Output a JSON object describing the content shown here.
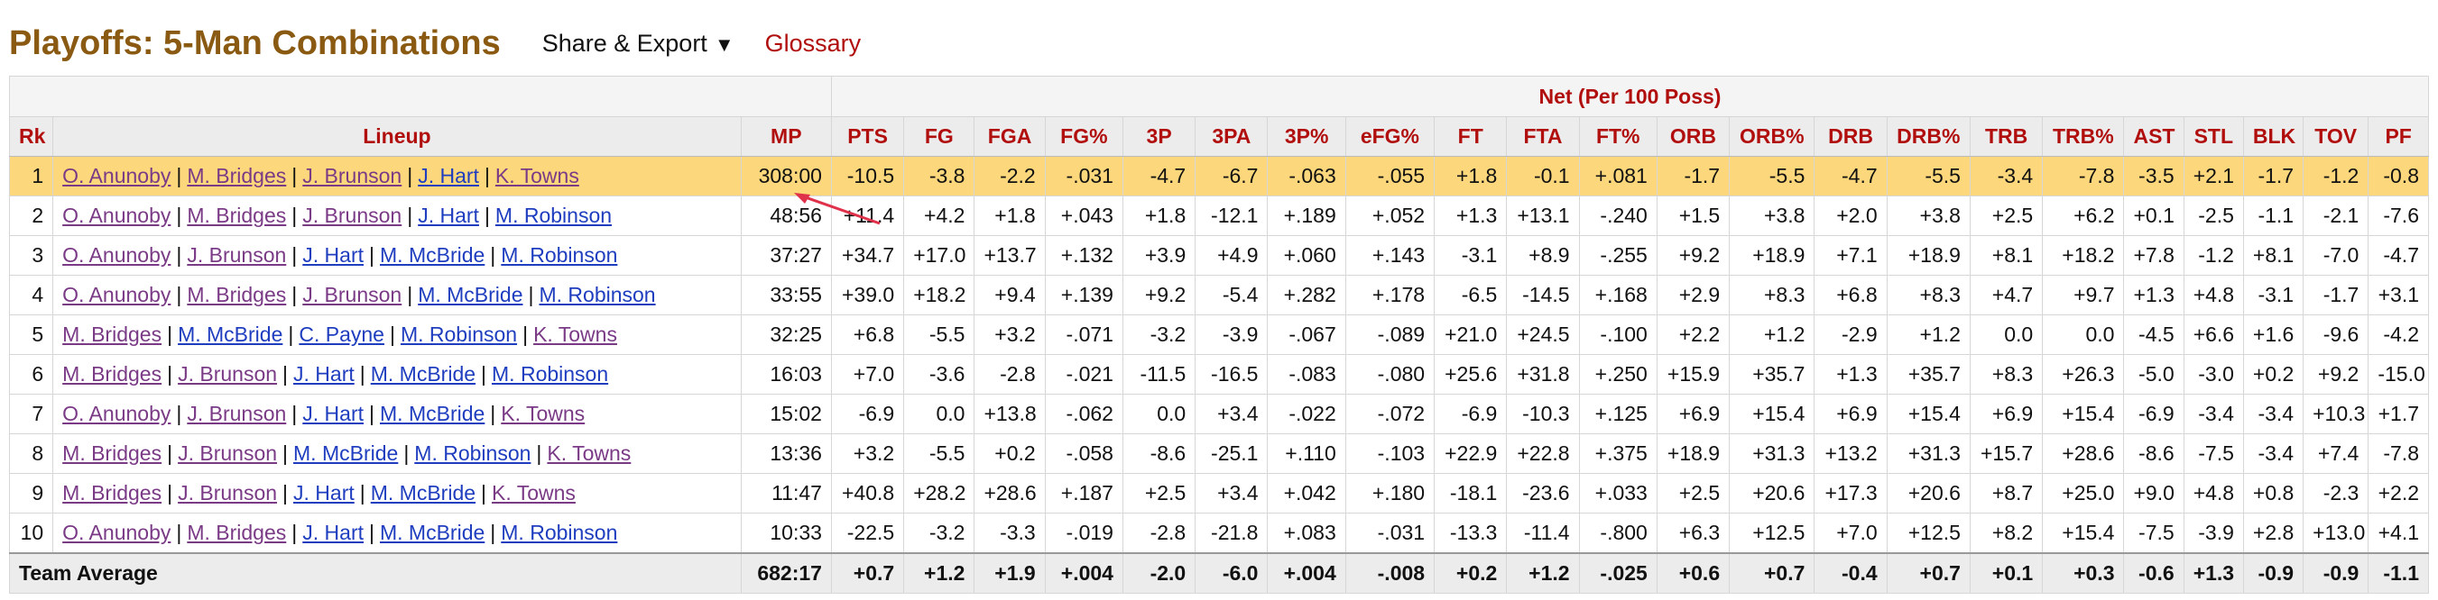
{
  "header": {
    "title": "Playoffs: 5-Man Combinations",
    "share_label": "Share & Export",
    "share_caret": "▼",
    "glossary_label": "Glossary"
  },
  "table": {
    "over_header": "Net (Per 100 Poss)",
    "columns": [
      "Rk",
      "Lineup",
      "MP",
      "PTS",
      "FG",
      "FGA",
      "FG%",
      "3P",
      "3PA",
      "3P%",
      "eFG%",
      "FT",
      "FTA",
      "FT%",
      "ORB",
      "ORB%",
      "DRB",
      "DRB%",
      "TRB",
      "TRB%",
      "AST",
      "STL",
      "BLK",
      "TOV",
      "PF"
    ],
    "rows": [
      {
        "rk": "1",
        "players": [
          {
            "n": "O. Anunoby",
            "c": "v"
          },
          {
            "n": "M. Bridges",
            "c": "v"
          },
          {
            "n": "J. Brunson",
            "c": "v"
          },
          {
            "n": "J. Hart",
            "c": "b"
          },
          {
            "n": "K. Towns",
            "c": "v"
          }
        ],
        "stats": [
          "308:00",
          "-10.5",
          "-3.8",
          "-2.2",
          "-.031",
          "-4.7",
          "-6.7",
          "-.063",
          "-.055",
          "+1.8",
          "-0.1",
          "+.081",
          "-1.7",
          "-5.5",
          "-4.7",
          "-5.5",
          "-3.4",
          "-7.8",
          "-3.5",
          "+2.1",
          "-1.7",
          "-1.2",
          "-0.8"
        ]
      },
      {
        "rk": "2",
        "players": [
          {
            "n": "O. Anunoby",
            "c": "v"
          },
          {
            "n": "M. Bridges",
            "c": "v"
          },
          {
            "n": "J. Brunson",
            "c": "v"
          },
          {
            "n": "J. Hart",
            "c": "b"
          },
          {
            "n": "M. Robinson",
            "c": "b"
          }
        ],
        "stats": [
          "48:56",
          "+11.4",
          "+4.2",
          "+1.8",
          "+.043",
          "+1.8",
          "-12.1",
          "+.189",
          "+.052",
          "+1.3",
          "+13.1",
          "-.240",
          "+1.5",
          "+3.8",
          "+2.0",
          "+3.8",
          "+2.5",
          "+6.2",
          "+0.1",
          "-2.5",
          "-1.1",
          "-2.1",
          "-7.6"
        ]
      },
      {
        "rk": "3",
        "players": [
          {
            "n": "O. Anunoby",
            "c": "v"
          },
          {
            "n": "J. Brunson",
            "c": "v"
          },
          {
            "n": "J. Hart",
            "c": "b"
          },
          {
            "n": "M. McBride",
            "c": "b"
          },
          {
            "n": "M. Robinson",
            "c": "b"
          }
        ],
        "stats": [
          "37:27",
          "+34.7",
          "+17.0",
          "+13.7",
          "+.132",
          "+3.9",
          "+4.9",
          "+.060",
          "+.143",
          "-3.1",
          "+8.9",
          "-.255",
          "+9.2",
          "+18.9",
          "+7.1",
          "+18.9",
          "+8.1",
          "+18.2",
          "+7.8",
          "-1.2",
          "+8.1",
          "-7.0",
          "-4.7"
        ]
      },
      {
        "rk": "4",
        "players": [
          {
            "n": "O. Anunoby",
            "c": "v"
          },
          {
            "n": "M. Bridges",
            "c": "v"
          },
          {
            "n": "J. Brunson",
            "c": "v"
          },
          {
            "n": "M. McBride",
            "c": "b"
          },
          {
            "n": "M. Robinson",
            "c": "b"
          }
        ],
        "stats": [
          "33:55",
          "+39.0",
          "+18.2",
          "+9.4",
          "+.139",
          "+9.2",
          "-5.4",
          "+.282",
          "+.178",
          "-6.5",
          "-14.5",
          "+.168",
          "+2.9",
          "+8.3",
          "+6.8",
          "+8.3",
          "+4.7",
          "+9.7",
          "+1.3",
          "+4.8",
          "-3.1",
          "-1.7",
          "+3.1"
        ]
      },
      {
        "rk": "5",
        "players": [
          {
            "n": "M. Bridges",
            "c": "v"
          },
          {
            "n": "M. McBride",
            "c": "b"
          },
          {
            "n": "C. Payne",
            "c": "b"
          },
          {
            "n": "M. Robinson",
            "c": "b"
          },
          {
            "n": "K. Towns",
            "c": "v"
          }
        ],
        "stats": [
          "32:25",
          "+6.8",
          "-5.5",
          "+3.2",
          "-.071",
          "-3.2",
          "-3.9",
          "-.067",
          "-.089",
          "+21.0",
          "+24.5",
          "-.100",
          "+2.2",
          "+1.2",
          "-2.9",
          "+1.2",
          "0.0",
          "0.0",
          "-4.5",
          "+6.6",
          "+1.6",
          "-9.6",
          "-4.2"
        ]
      },
      {
        "rk": "6",
        "players": [
          {
            "n": "M. Bridges",
            "c": "v"
          },
          {
            "n": "J. Brunson",
            "c": "v"
          },
          {
            "n": "J. Hart",
            "c": "b"
          },
          {
            "n": "M. McBride",
            "c": "b"
          },
          {
            "n": "M. Robinson",
            "c": "b"
          }
        ],
        "stats": [
          "16:03",
          "+7.0",
          "-3.6",
          "-2.8",
          "-.021",
          "-11.5",
          "-16.5",
          "-.083",
          "-.080",
          "+25.6",
          "+31.8",
          "+.250",
          "+15.9",
          "+35.7",
          "+1.3",
          "+35.7",
          "+8.3",
          "+26.3",
          "-5.0",
          "-3.0",
          "+0.2",
          "+9.2",
          "-15.0"
        ]
      },
      {
        "rk": "7",
        "players": [
          {
            "n": "O. Anunoby",
            "c": "v"
          },
          {
            "n": "J. Brunson",
            "c": "v"
          },
          {
            "n": "J. Hart",
            "c": "b"
          },
          {
            "n": "M. McBride",
            "c": "b"
          },
          {
            "n": "K. Towns",
            "c": "v"
          }
        ],
        "stats": [
          "15:02",
          "-6.9",
          "0.0",
          "+13.8",
          "-.062",
          "0.0",
          "+3.4",
          "-.022",
          "-.072",
          "-6.9",
          "-10.3",
          "+.125",
          "+6.9",
          "+15.4",
          "+6.9",
          "+15.4",
          "+6.9",
          "+15.4",
          "-6.9",
          "-3.4",
          "-3.4",
          "+10.3",
          "+1.7"
        ]
      },
      {
        "rk": "8",
        "players": [
          {
            "n": "M. Bridges",
            "c": "v"
          },
          {
            "n": "J. Brunson",
            "c": "v"
          },
          {
            "n": "M. McBride",
            "c": "b"
          },
          {
            "n": "M. Robinson",
            "c": "b"
          },
          {
            "n": "K. Towns",
            "c": "v"
          }
        ],
        "stats": [
          "13:36",
          "+3.2",
          "-5.5",
          "+0.2",
          "-.058",
          "-8.6",
          "-25.1",
          "+.110",
          "-.103",
          "+22.9",
          "+22.8",
          "+.375",
          "+18.9",
          "+31.3",
          "+13.2",
          "+31.3",
          "+15.7",
          "+28.6",
          "-8.6",
          "-7.5",
          "-3.4",
          "+7.4",
          "-7.8"
        ]
      },
      {
        "rk": "9",
        "players": [
          {
            "n": "M. Bridges",
            "c": "v"
          },
          {
            "n": "J. Brunson",
            "c": "v"
          },
          {
            "n": "J. Hart",
            "c": "b"
          },
          {
            "n": "M. McBride",
            "c": "b"
          },
          {
            "n": "K. Towns",
            "c": "v"
          }
        ],
        "stats": [
          "11:47",
          "+40.8",
          "+28.2",
          "+28.6",
          "+.187",
          "+2.5",
          "+3.4",
          "+.042",
          "+.180",
          "-18.1",
          "-23.6",
          "+.033",
          "+2.5",
          "+20.6",
          "+17.3",
          "+20.6",
          "+8.7",
          "+25.0",
          "+9.0",
          "+4.8",
          "+0.8",
          "-2.3",
          "+2.2"
        ]
      },
      {
        "rk": "10",
        "players": [
          {
            "n": "O. Anunoby",
            "c": "v"
          },
          {
            "n": "M. Bridges",
            "c": "v"
          },
          {
            "n": "J. Hart",
            "c": "b"
          },
          {
            "n": "M. McBride",
            "c": "b"
          },
          {
            "n": "M. Robinson",
            "c": "b"
          }
        ],
        "stats": [
          "10:33",
          "-22.5",
          "-3.2",
          "-3.3",
          "-.019",
          "-2.8",
          "-21.8",
          "+.083",
          "-.031",
          "-13.3",
          "-11.4",
          "-.800",
          "+6.3",
          "+12.5",
          "+7.0",
          "+12.5",
          "+8.2",
          "+15.4",
          "-7.5",
          "-3.9",
          "+2.8",
          "+13.0",
          "+4.1"
        ]
      }
    ],
    "average": {
      "label": "Team Average",
      "stats": [
        "682:17",
        "+0.7",
        "+1.2",
        "+1.9",
        "+.004",
        "-2.0",
        "-6.0",
        "+.004",
        "-.008",
        "+0.2",
        "+1.2",
        "-.025",
        "+0.6",
        "+0.7",
        "-0.4",
        "+0.7",
        "+0.1",
        "+0.3",
        "-0.6",
        "+1.3",
        "-0.9",
        "-0.9",
        "-1.1"
      ]
    },
    "highlight_color": "#fcd77b"
  }
}
